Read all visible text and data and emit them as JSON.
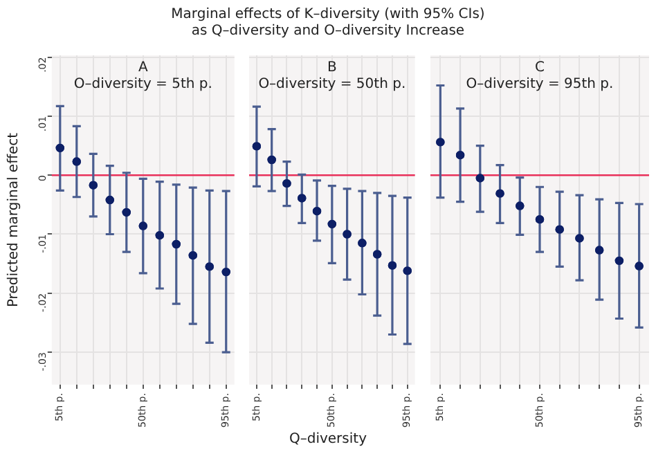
{
  "chart_data": [
    {
      "type": "scatter",
      "title": "Marginal effects of K–diversity (with 95% CIs)\nas Q–diversity and O–diversity Increase",
      "subtitle": "A\nO–diversity = 5th p.",
      "ylabel": "Predicted marginal effect",
      "categories": [
        "5th p.",
        null,
        null,
        null,
        null,
        "50th p.",
        null,
        null,
        null,
        null,
        "95th p."
      ],
      "series": [
        {
          "color": "#0d1f66",
          "values": [
            0.0046,
            0.0023,
            -0.0017,
            -0.0042,
            -0.0063,
            -0.0086,
            -0.0102,
            -0.0117,
            -0.0136,
            -0.0155,
            -0.0164
          ],
          "errors": [
            [
              -0.0026,
              0.0117
            ],
            [
              -0.0037,
              0.0083
            ],
            [
              -0.007,
              0.0036
            ],
            [
              -0.01,
              0.0016
            ],
            [
              -0.013,
              0.0004
            ],
            [
              -0.0166,
              -0.0006
            ],
            [
              -0.0192,
              -0.0011
            ],
            [
              -0.0218,
              -0.0016
            ],
            [
              -0.0252,
              -0.0021
            ],
            [
              -0.0284,
              -0.0026
            ],
            [
              -0.03,
              -0.0027
            ]
          ]
        }
      ],
      "ylim": [
        -0.0355,
        0.0203
      ],
      "yticks": [
        {
          "value": 0.02,
          "label": ".02"
        },
        {
          "value": 0.01,
          "label": ".01"
        },
        {
          "value": 0,
          "label": "0"
        },
        {
          "value": -0.01,
          "label": "-.01"
        },
        {
          "value": -0.02,
          "label": "-.02"
        },
        {
          "value": -0.03,
          "label": "-.03"
        }
      ],
      "ref_lines": [
        {
          "axis": "y",
          "value": 0,
          "color": "#e8305a"
        }
      ],
      "grid": true,
      "marker": "circle"
    },
    {
      "type": "scatter",
      "subtitle": "B\nO–diversity = 50th p.",
      "xlabel": "Q–diversity",
      "categories": [
        "5th p.",
        null,
        null,
        null,
        null,
        "50th p.",
        null,
        null,
        null,
        null,
        "95th p."
      ],
      "series": [
        {
          "color": "#0d1f66",
          "values": [
            0.0049,
            0.0026,
            -0.0014,
            -0.0039,
            -0.0061,
            -0.0083,
            -0.01,
            -0.0115,
            -0.0134,
            -0.0153,
            -0.0162
          ],
          "errors": [
            [
              -0.0019,
              0.0116
            ],
            [
              -0.0027,
              0.0078
            ],
            [
              -0.0052,
              0.0023
            ],
            [
              -0.0081,
              0.0001
            ],
            [
              -0.0111,
              -0.0009
            ],
            [
              -0.0149,
              -0.0018
            ],
            [
              -0.0177,
              -0.0023
            ],
            [
              -0.0202,
              -0.0027
            ],
            [
              -0.0238,
              -0.003
            ],
            [
              -0.027,
              -0.0035
            ],
            [
              -0.0286,
              -0.0038
            ]
          ]
        }
      ],
      "ylim": [
        -0.0355,
        0.0203
      ],
      "yticks": [
        0.02,
        0.01,
        0,
        -0.01,
        -0.02,
        -0.03
      ],
      "ref_lines": [
        {
          "axis": "y",
          "value": 0,
          "color": "#e8305a"
        }
      ],
      "grid": true,
      "marker": "circle",
      "tick_labels": "x"
    },
    {
      "type": "scatter",
      "subtitle": "C\nO–diversity = 95th p.",
      "categories": [
        "5th p.",
        null,
        null,
        null,
        null,
        "50th p.",
        null,
        null,
        null,
        null,
        "95th p."
      ],
      "series": [
        {
          "color": "#0d1f66",
          "values": [
            0.0056,
            0.0034,
            -0.0005,
            -0.0031,
            -0.0052,
            -0.0075,
            -0.0092,
            -0.0107,
            -0.0127,
            -0.0145,
            -0.0154
          ],
          "errors": [
            [
              -0.0038,
              0.0152
            ],
            [
              -0.0045,
              0.0113
            ],
            [
              -0.0062,
              0.005
            ],
            [
              -0.0081,
              0.0017
            ],
            [
              -0.0101,
              -0.0004
            ],
            [
              -0.013,
              -0.002
            ],
            [
              -0.0155,
              -0.0028
            ],
            [
              -0.0178,
              -0.0034
            ],
            [
              -0.0211,
              -0.0041
            ],
            [
              -0.0243,
              -0.0047
            ],
            [
              -0.0258,
              -0.0049
            ]
          ]
        }
      ],
      "ylim": [
        -0.0355,
        0.0203
      ],
      "yticks": [
        0.02,
        0.01,
        0,
        -0.01,
        -0.02,
        -0.03
      ],
      "ref_lines": [
        {
          "axis": "y",
          "value": 0,
          "color": "#e8305a"
        }
      ],
      "grid": true,
      "marker": "circle",
      "tick_labels": "x"
    }
  ]
}
